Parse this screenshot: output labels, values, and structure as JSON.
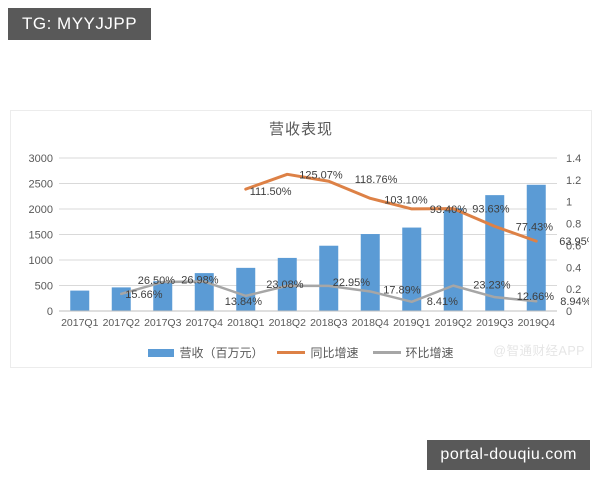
{
  "page": {
    "badge": "TG: MYYJJPP",
    "watermark": "@智通财经APP",
    "site_tag": "portal-douqiu.com"
  },
  "chart_data": {
    "type": "bar",
    "subtype": "combo bar + 2 lines, dual axis",
    "title": "营收表现",
    "categories": [
      "2017Q1",
      "2017Q2",
      "2017Q3",
      "2017Q4",
      "2018Q1",
      "2018Q2",
      "2018Q3",
      "2018Q4",
      "2019Q1",
      "2019Q2",
      "2019Q3",
      "2019Q4"
    ],
    "series": [
      {
        "name": "营收（百万元）",
        "type": "bar",
        "axis": "left",
        "color": "#5b9bd5",
        "start_index": 0,
        "values": [
          400,
          463,
          585,
          743,
          846,
          1041,
          1280,
          1509,
          1636,
          2016,
          2272,
          2475
        ],
        "note": "bar heights estimated from gridlines; no data labels shown"
      },
      {
        "name": "同比增速",
        "type": "line",
        "axis": "right",
        "color": "#dd8146",
        "start_index": 4,
        "values": [
          111.5,
          125.07,
          118.76,
          103.1,
          93.4,
          93.63,
          77.43,
          63.95
        ],
        "labels": [
          "111.50%",
          "125.07%",
          "118.76%",
          "103.10%",
          "93.40%",
          "93.63%",
          "77.43%",
          "63.95%"
        ]
      },
      {
        "name": "环比增速",
        "type": "line",
        "axis": "right",
        "color": "#a6a6a6",
        "start_index": 1,
        "values": [
          15.66,
          26.5,
          26.98,
          13.84,
          23.08,
          22.95,
          17.89,
          8.41,
          23.23,
          12.66,
          8.94
        ],
        "labels": [
          "15.66%",
          "26.50%",
          "26.98%",
          "13.84%",
          "23.08%",
          "22.95%",
          "17.89%",
          "8.41%",
          "23.23%",
          "12.66%",
          "8.94%"
        ]
      }
    ],
    "left_axis": {
      "ticks": [
        0,
        500,
        1000,
        1500,
        2000,
        2500,
        3000
      ],
      "min": 0,
      "max": 3000
    },
    "right_axis": {
      "ticks": [
        "0",
        "0.2",
        "0.4",
        "0.6",
        "0.8",
        "1",
        "1.2",
        "1.4"
      ],
      "min": 0,
      "max": 1.4
    },
    "grid": true,
    "legend_position": "bottom",
    "xlabel": "",
    "ylabel": ""
  }
}
